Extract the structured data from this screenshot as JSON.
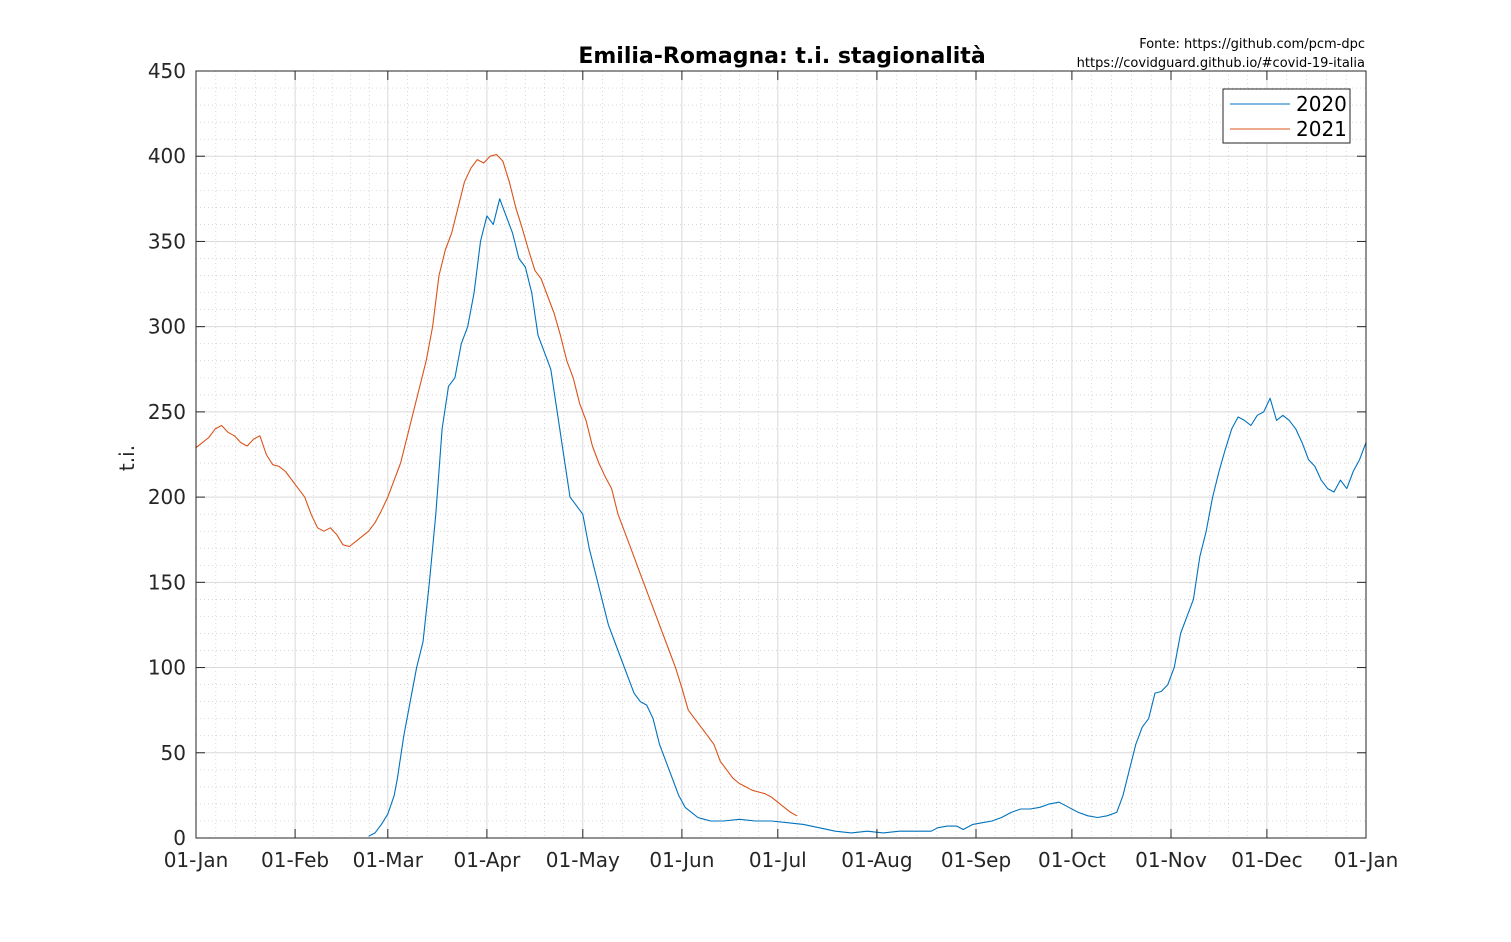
{
  "chart_data": {
    "type": "line",
    "title": "Emilia-Romagna: t.i. stagionalità",
    "source_line1": "Fonte: https://github.com/pcm-dpc",
    "source_line2": "https://covidguard.github.io/#covid-19-italia",
    "xlabel": "",
    "ylabel": "t.i.",
    "ylim": [
      0,
      450
    ],
    "yticks": [
      0,
      50,
      100,
      150,
      200,
      250,
      300,
      350,
      400,
      450
    ],
    "xlim_days": [
      0,
      366
    ],
    "xticks": [
      {
        "day": 0,
        "label": "01-Jan"
      },
      {
        "day": 31,
        "label": "01-Feb"
      },
      {
        "day": 60,
        "label": "01-Mar"
      },
      {
        "day": 91,
        "label": "01-Apr"
      },
      {
        "day": 121,
        "label": "01-May"
      },
      {
        "day": 152,
        "label": "01-Jun"
      },
      {
        "day": 182,
        "label": "01-Jul"
      },
      {
        "day": 213,
        "label": "01-Aug"
      },
      {
        "day": 244,
        "label": "01-Sep"
      },
      {
        "day": 274,
        "label": "01-Oct"
      },
      {
        "day": 305,
        "label": "01-Nov"
      },
      {
        "day": 335,
        "label": "01-Dec"
      },
      {
        "day": 366,
        "label": "01-Jan"
      }
    ],
    "grid": true,
    "minor_grid": true,
    "legend_position": "top-right",
    "series": [
      {
        "name": "2020",
        "color": "#0072BD",
        "points": [
          [
            54,
            1
          ],
          [
            56,
            3
          ],
          [
            58,
            8
          ],
          [
            60,
            14
          ],
          [
            62,
            25
          ],
          [
            63,
            35
          ],
          [
            65,
            60
          ],
          [
            67,
            80
          ],
          [
            69,
            100
          ],
          [
            71,
            115
          ],
          [
            73,
            150
          ],
          [
            75,
            190
          ],
          [
            77,
            240
          ],
          [
            79,
            265
          ],
          [
            81,
            270
          ],
          [
            83,
            290
          ],
          [
            85,
            300
          ],
          [
            87,
            320
          ],
          [
            89,
            350
          ],
          [
            91,
            365
          ],
          [
            93,
            360
          ],
          [
            95,
            375
          ],
          [
            97,
            365
          ],
          [
            99,
            355
          ],
          [
            101,
            340
          ],
          [
            103,
            335
          ],
          [
            105,
            320
          ],
          [
            107,
            295
          ],
          [
            109,
            285
          ],
          [
            111,
            275
          ],
          [
            113,
            250
          ],
          [
            115,
            225
          ],
          [
            117,
            200
          ],
          [
            119,
            195
          ],
          [
            121,
            190
          ],
          [
            123,
            170
          ],
          [
            125,
            155
          ],
          [
            127,
            140
          ],
          [
            129,
            125
          ],
          [
            131,
            115
          ],
          [
            133,
            105
          ],
          [
            135,
            95
          ],
          [
            137,
            85
          ],
          [
            139,
            80
          ],
          [
            141,
            78
          ],
          [
            143,
            70
          ],
          [
            145,
            55
          ],
          [
            147,
            45
          ],
          [
            149,
            35
          ],
          [
            151,
            25
          ],
          [
            153,
            18
          ],
          [
            155,
            15
          ],
          [
            157,
            12
          ],
          [
            159,
            11
          ],
          [
            161,
            10
          ],
          [
            165,
            10
          ],
          [
            170,
            11
          ],
          [
            175,
            10
          ],
          [
            180,
            10
          ],
          [
            185,
            9
          ],
          [
            190,
            8
          ],
          [
            195,
            6
          ],
          [
            200,
            4
          ],
          [
            205,
            3
          ],
          [
            210,
            4
          ],
          [
            215,
            3
          ],
          [
            220,
            4
          ],
          [
            225,
            4
          ],
          [
            230,
            4
          ],
          [
            232,
            6
          ],
          [
            235,
            7
          ],
          [
            238,
            7
          ],
          [
            240,
            5
          ],
          [
            243,
            8
          ],
          [
            246,
            9
          ],
          [
            249,
            10
          ],
          [
            252,
            12
          ],
          [
            255,
            15
          ],
          [
            258,
            17
          ],
          [
            261,
            17
          ],
          [
            264,
            18
          ],
          [
            267,
            20
          ],
          [
            270,
            21
          ],
          [
            273,
            18
          ],
          [
            276,
            15
          ],
          [
            279,
            13
          ],
          [
            282,
            12
          ],
          [
            285,
            13
          ],
          [
            288,
            15
          ],
          [
            290,
            25
          ],
          [
            292,
            40
          ],
          [
            294,
            55
          ],
          [
            296,
            65
          ],
          [
            298,
            70
          ],
          [
            300,
            85
          ],
          [
            302,
            86
          ],
          [
            304,
            90
          ],
          [
            306,
            100
          ],
          [
            308,
            120
          ],
          [
            310,
            130
          ],
          [
            312,
            140
          ],
          [
            314,
            165
          ],
          [
            316,
            180
          ],
          [
            318,
            200
          ],
          [
            320,
            215
          ],
          [
            322,
            228
          ],
          [
            324,
            240
          ],
          [
            326,
            247
          ],
          [
            328,
            245
          ],
          [
            330,
            242
          ],
          [
            332,
            248
          ],
          [
            334,
            250
          ],
          [
            336,
            258
          ],
          [
            338,
            245
          ],
          [
            340,
            248
          ],
          [
            342,
            245
          ],
          [
            344,
            240
          ],
          [
            346,
            232
          ],
          [
            348,
            222
          ],
          [
            350,
            218
          ],
          [
            352,
            210
          ],
          [
            354,
            205
          ],
          [
            356,
            203
          ],
          [
            358,
            210
          ],
          [
            360,
            205
          ],
          [
            362,
            215
          ],
          [
            364,
            222
          ],
          [
            366,
            232
          ]
        ]
      },
      {
        "name": "2021",
        "color": "#D95319",
        "points": [
          [
            0,
            229
          ],
          [
            2,
            232
          ],
          [
            4,
            235
          ],
          [
            6,
            240
          ],
          [
            8,
            242
          ],
          [
            10,
            238
          ],
          [
            12,
            236
          ],
          [
            14,
            232
          ],
          [
            16,
            230
          ],
          [
            18,
            234
          ],
          [
            20,
            236
          ],
          [
            22,
            225
          ],
          [
            24,
            219
          ],
          [
            26,
            218
          ],
          [
            28,
            215
          ],
          [
            30,
            210
          ],
          [
            32,
            205
          ],
          [
            34,
            200
          ],
          [
            36,
            190
          ],
          [
            38,
            182
          ],
          [
            40,
            180
          ],
          [
            42,
            182
          ],
          [
            44,
            178
          ],
          [
            46,
            172
          ],
          [
            48,
            171
          ],
          [
            50,
            174
          ],
          [
            52,
            177
          ],
          [
            54,
            180
          ],
          [
            56,
            185
          ],
          [
            58,
            192
          ],
          [
            60,
            200
          ],
          [
            62,
            210
          ],
          [
            64,
            220
          ],
          [
            66,
            235
          ],
          [
            68,
            250
          ],
          [
            70,
            265
          ],
          [
            72,
            280
          ],
          [
            74,
            300
          ],
          [
            76,
            330
          ],
          [
            78,
            345
          ],
          [
            80,
            355
          ],
          [
            82,
            370
          ],
          [
            84,
            385
          ],
          [
            86,
            393
          ],
          [
            88,
            398
          ],
          [
            90,
            396
          ],
          [
            92,
            400
          ],
          [
            94,
            401
          ],
          [
            96,
            397
          ],
          [
            98,
            385
          ],
          [
            100,
            370
          ],
          [
            102,
            358
          ],
          [
            104,
            345
          ],
          [
            106,
            333
          ],
          [
            108,
            328
          ],
          [
            110,
            318
          ],
          [
            112,
            308
          ],
          [
            114,
            295
          ],
          [
            116,
            280
          ],
          [
            118,
            270
          ],
          [
            120,
            255
          ],
          [
            122,
            245
          ],
          [
            124,
            230
          ],
          [
            126,
            220
          ],
          [
            128,
            212
          ],
          [
            130,
            205
          ],
          [
            132,
            190
          ],
          [
            134,
            180
          ],
          [
            136,
            170
          ],
          [
            138,
            160
          ],
          [
            140,
            150
          ],
          [
            142,
            140
          ],
          [
            144,
            130
          ],
          [
            146,
            120
          ],
          [
            148,
            110
          ],
          [
            150,
            100
          ],
          [
            152,
            88
          ],
          [
            154,
            75
          ],
          [
            156,
            70
          ],
          [
            158,
            65
          ],
          [
            160,
            60
          ],
          [
            162,
            55
          ],
          [
            164,
            45
          ],
          [
            166,
            40
          ],
          [
            168,
            35
          ],
          [
            170,
            32
          ],
          [
            172,
            30
          ],
          [
            174,
            28
          ],
          [
            176,
            27
          ],
          [
            178,
            26
          ],
          [
            180,
            24
          ],
          [
            182,
            21
          ],
          [
            184,
            18
          ],
          [
            186,
            15
          ],
          [
            188,
            13
          ]
        ]
      }
    ]
  }
}
